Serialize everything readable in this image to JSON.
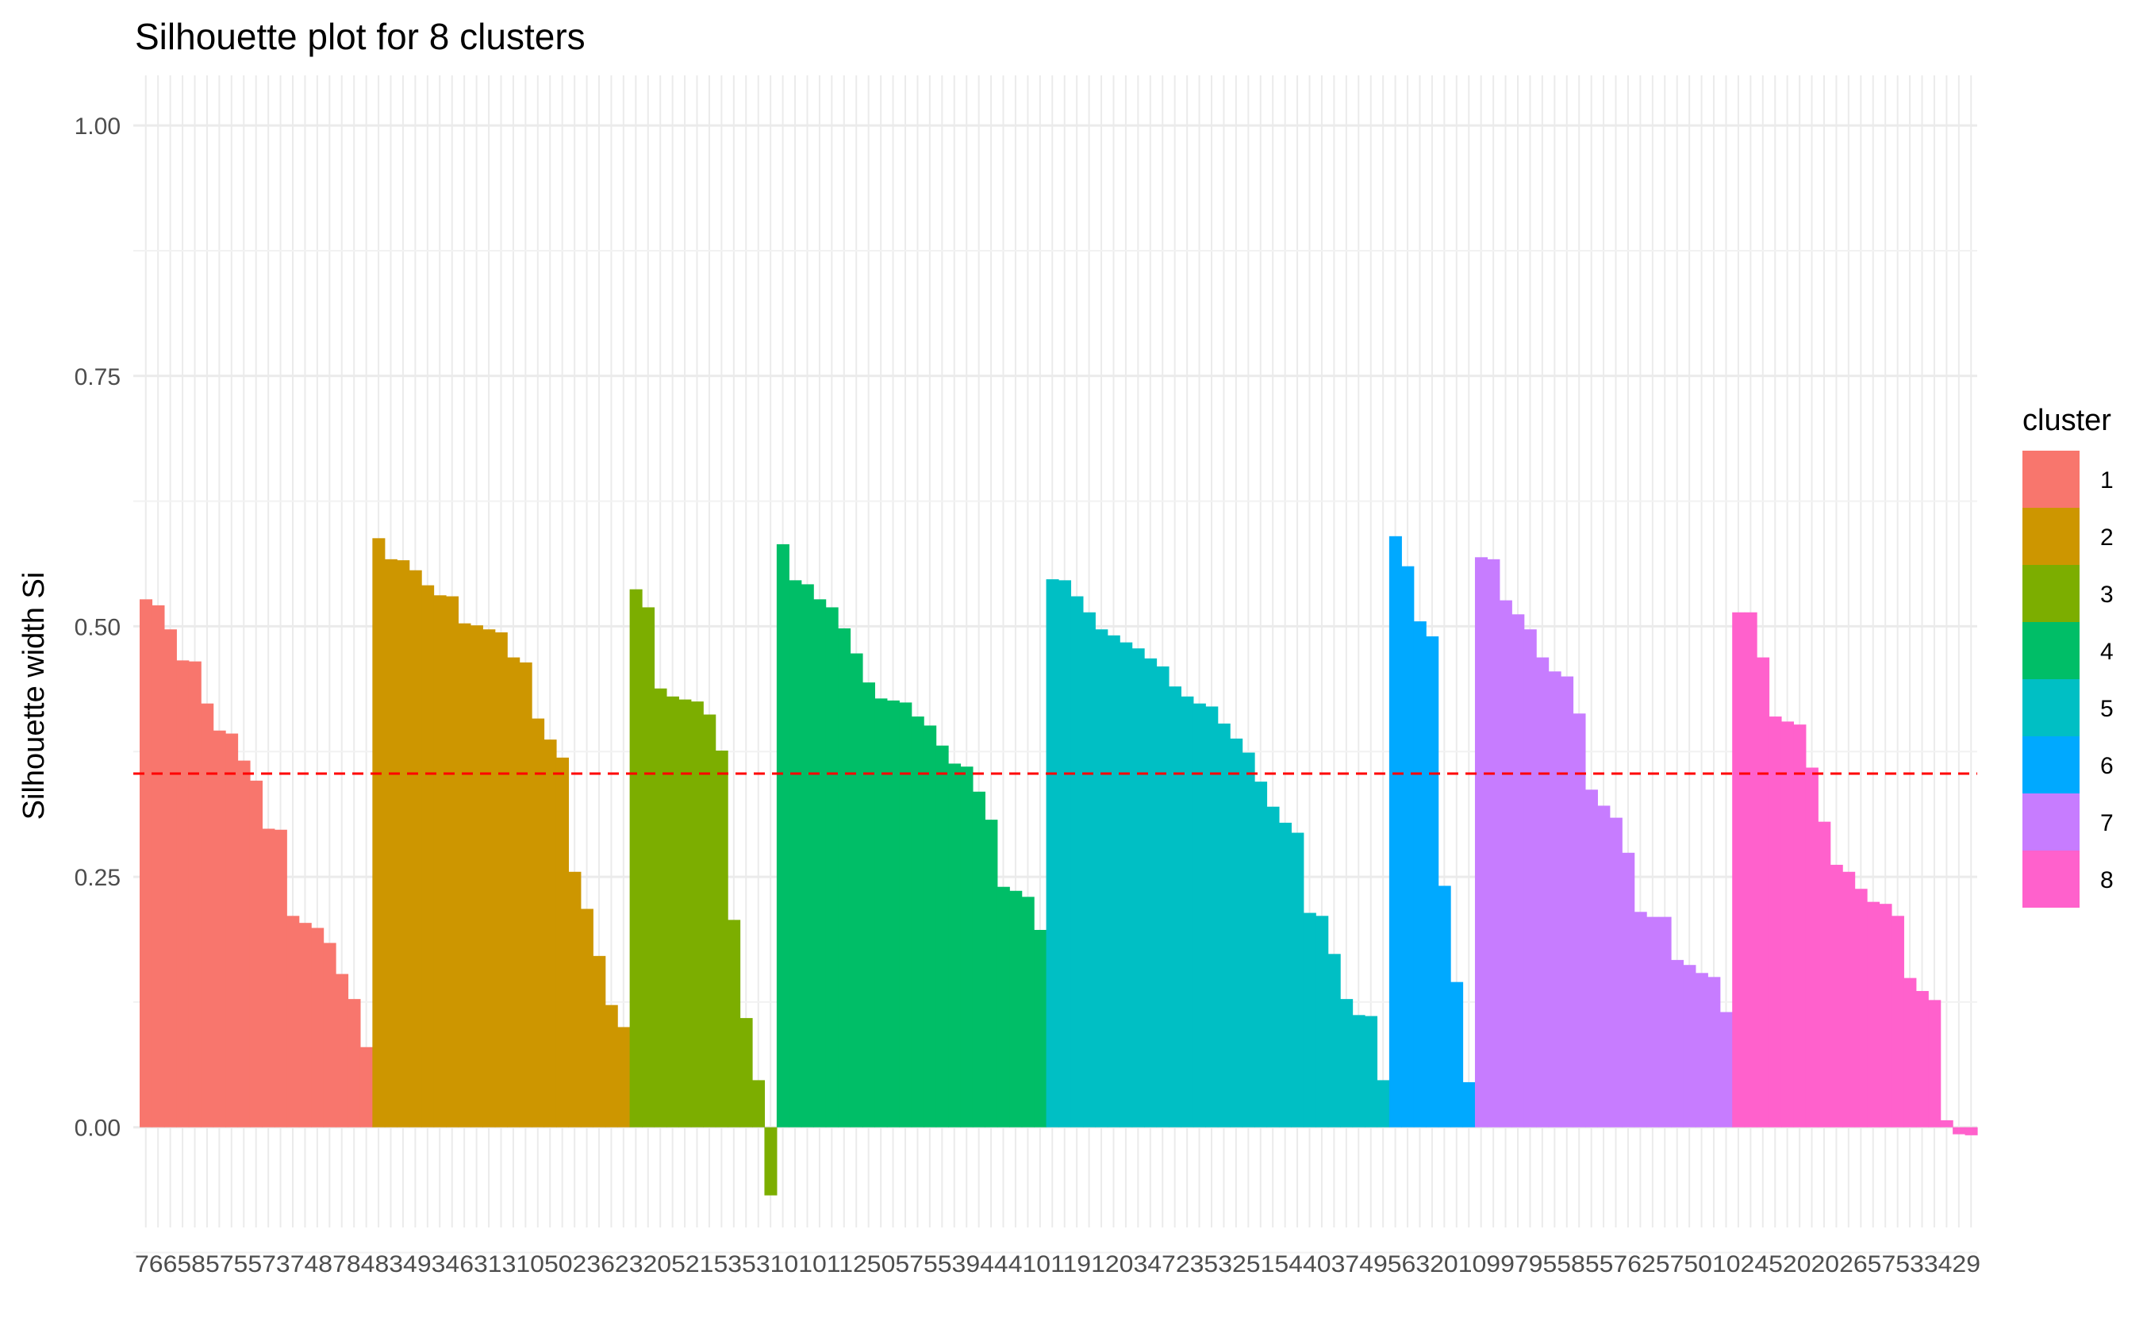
{
  "chart_data": {
    "type": "bar",
    "title": "Silhouette plot for 8 clusters",
    "xlabel": "",
    "ylabel": "Silhouette width Si",
    "ylim": [
      -0.1,
      1.05
    ],
    "yticks": [
      "0.00",
      "0.25",
      "0.50",
      "0.75",
      "1.00"
    ],
    "ytick_values": [
      0,
      0.25,
      0.5,
      0.75,
      1.0
    ],
    "average_silhouette": 0.353,
    "reference_line_color": "#ff0000",
    "grid": true,
    "legend": {
      "title": "cluster",
      "position": "right",
      "entries": [
        "1",
        "2",
        "3",
        "4",
        "5",
        "6",
        "7",
        "8"
      ]
    },
    "colors": [
      "#F8766D",
      "#CD9600",
      "#7CAE00",
      "#00BE67",
      "#00BFC4",
      "#00A9FF",
      "#C77CFF",
      "#FF61CC"
    ],
    "series": [
      {
        "cluster": "1",
        "values": [
          0.527,
          0.521,
          0.497,
          0.466,
          0.465,
          0.423,
          0.396,
          0.393,
          0.366,
          0.346,
          0.298,
          0.297,
          0.211,
          0.204,
          0.199,
          0.184,
          0.153,
          0.128,
          0.08
        ]
      },
      {
        "cluster": "2",
        "values": [
          0.588,
          0.567,
          0.566,
          0.556,
          0.541,
          0.531,
          0.53,
          0.503,
          0.501,
          0.497,
          0.494,
          0.469,
          0.464,
          0.408,
          0.387,
          0.369,
          0.255,
          0.218,
          0.171,
          0.122,
          0.1
        ]
      },
      {
        "cluster": "3",
        "values": [
          0.537,
          0.519,
          0.438,
          0.43,
          0.427,
          0.425,
          0.412,
          0.376,
          0.207,
          0.109,
          0.047,
          -0.068
        ]
      },
      {
        "cluster": "4",
        "values": [
          0.582,
          0.546,
          0.542,
          0.527,
          0.519,
          0.498,
          0.473,
          0.444,
          0.428,
          0.426,
          0.424,
          0.41,
          0.401,
          0.381,
          0.363,
          0.36,
          0.335,
          0.307,
          0.24,
          0.236,
          0.23,
          0.197
        ]
      },
      {
        "cluster": "5",
        "values": [
          0.547,
          0.546,
          0.53,
          0.514,
          0.497,
          0.491,
          0.484,
          0.478,
          0.468,
          0.46,
          0.44,
          0.43,
          0.423,
          0.42,
          0.403,
          0.388,
          0.374,
          0.345,
          0.32,
          0.304,
          0.294,
          0.214,
          0.211,
          0.173,
          0.128,
          0.112,
          0.111,
          0.047
        ]
      },
      {
        "cluster": "6",
        "values": [
          0.59,
          0.56,
          0.505,
          0.49,
          0.241,
          0.145,
          0.045
        ]
      },
      {
        "cluster": "7",
        "values": [
          0.569,
          0.567,
          0.526,
          0.512,
          0.497,
          0.469,
          0.455,
          0.45,
          0.413,
          0.337,
          0.321,
          0.309,
          0.274,
          0.215,
          0.21,
          0.21,
          0.167,
          0.162,
          0.154,
          0.15,
          0.115
        ]
      },
      {
        "cluster": "8",
        "values": [
          0.514,
          0.514,
          0.469,
          0.41,
          0.405,
          0.402,
          0.359,
          0.305,
          0.262,
          0.255,
          0.238,
          0.225,
          0.223,
          0.211,
          0.149,
          0.136,
          0.127,
          0.007,
          -0.007,
          -0.008
        ]
      }
    ],
    "x_tick_labels_overlapping": "76658575573748784834934631310502362320521535310101125057553944410119120347235325154403749563201099795585576257501024520202657533429"
  }
}
